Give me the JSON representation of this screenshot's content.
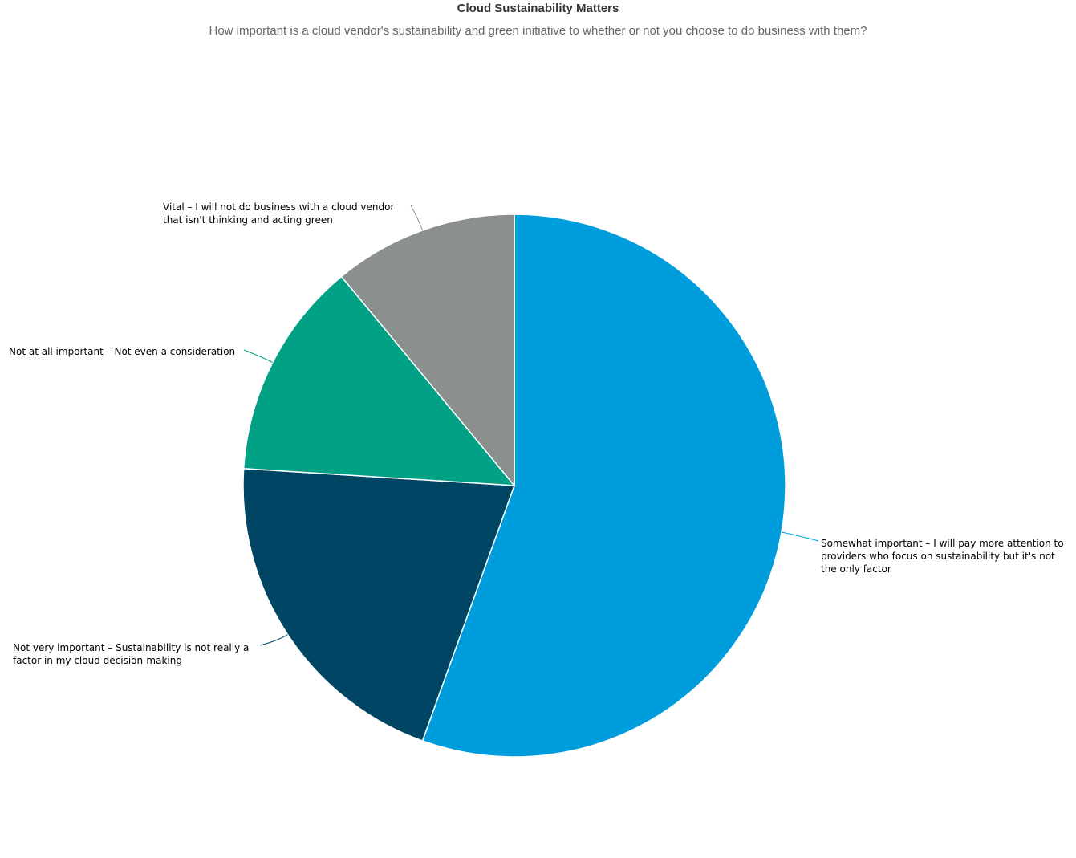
{
  "chart_data": {
    "type": "pie",
    "title": "Cloud Sustainability Matters",
    "subtitle": "How important is a cloud vendor's sustainability and green initiative to whether or not you choose to do business with them?",
    "slices": [
      {
        "label": "Somewhat important – I will pay more attention to providers who focus on sustainability but it's not the only factor",
        "value": 55.5,
        "color": "#009ddd"
      },
      {
        "label": "Not very important – Sustainability is not really a factor in my cloud decision-making",
        "value": 20.5,
        "color": "#004563"
      },
      {
        "label": "Not at all important – Not even a consideration",
        "value": 13.0,
        "color": "#00a185"
      },
      {
        "label": "Vital – I will not do business with a cloud vendor that isn't thinking and acting green",
        "value": 11.0,
        "color": "#8b8f8e"
      }
    ]
  }
}
